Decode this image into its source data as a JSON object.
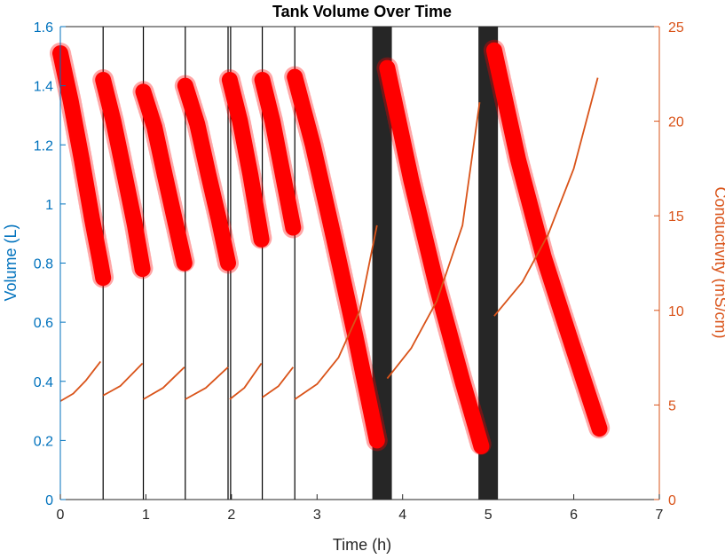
{
  "chart_data": {
    "type": "line",
    "title": "Tank Volume Over Time",
    "xlabel": "Time (h)",
    "ylabel_left": "Volume (L)",
    "ylabel_right": "Conductivity (mS/cm)",
    "xlim": [
      0,
      7
    ],
    "ylim_left": [
      0,
      1.6
    ],
    "ylim_right": [
      0,
      25
    ],
    "x_ticks": [
      0,
      1,
      2,
      3,
      4,
      5,
      6,
      7
    ],
    "y_left_ticks": [
      0,
      0.2,
      0.4,
      0.6,
      0.8,
      1,
      1.2,
      1.4,
      1.6
    ],
    "y_right_ticks": [
      0,
      5,
      10,
      15,
      20,
      25
    ],
    "grid": false,
    "colors": {
      "volume": "#ff0000",
      "conductivity": "#d95319",
      "left_axis": "#0072bd",
      "right_axis": "#d95319",
      "boundary": "#000000",
      "thick_boundary": "#262626"
    },
    "series": [
      {
        "axis": "left",
        "marker": "asterisk",
        "segments": [
          {
            "x": [
              0.0,
              0.12,
              0.25,
              0.37,
              0.47,
              0.5
            ],
            "y": [
              1.51,
              1.35,
              1.15,
              0.95,
              0.8,
              0.75
            ]
          },
          {
            "x": [
              0.5,
              0.62,
              0.75,
              0.87,
              0.96
            ],
            "y": [
              1.42,
              1.28,
              1.1,
              0.93,
              0.78
            ]
          },
          {
            "x": [
              0.97,
              1.1,
              1.22,
              1.35,
              1.45
            ],
            "y": [
              1.38,
              1.26,
              1.1,
              0.93,
              0.8
            ]
          },
          {
            "x": [
              1.46,
              1.6,
              1.73,
              1.85,
              1.96
            ],
            "y": [
              1.4,
              1.27,
              1.1,
              0.95,
              0.8
            ]
          },
          {
            "x": [
              1.98,
              2.1,
              2.22,
              2.35
            ],
            "y": [
              1.42,
              1.28,
              1.1,
              0.88
            ]
          },
          {
            "x": [
              2.36,
              2.48,
              2.6,
              2.72
            ],
            "y": [
              1.42,
              1.28,
              1.1,
              0.92
            ]
          },
          {
            "x": [
              2.74,
              2.95,
              3.2,
              3.45,
              3.7
            ],
            "y": [
              1.43,
              1.2,
              0.88,
              0.55,
              0.2
            ]
          },
          {
            "x": [
              3.82,
              4.1,
              4.4,
              4.7,
              4.92
            ],
            "y": [
              1.46,
              1.08,
              0.72,
              0.4,
              0.18
            ]
          },
          {
            "x": [
              5.07,
              5.35,
              5.65,
              5.95,
              6.3
            ],
            "y": [
              1.52,
              1.15,
              0.82,
              0.55,
              0.24
            ]
          }
        ]
      },
      {
        "axis": "right",
        "marker": "none",
        "segments": [
          {
            "x": [
              0.0,
              0.15,
              0.3,
              0.47
            ],
            "y": [
              5.2,
              5.6,
              6.3,
              7.3
            ]
          },
          {
            "x": [
              0.5,
              0.7,
              0.96
            ],
            "y": [
              5.5,
              6.0,
              7.2
            ]
          },
          {
            "x": [
              0.97,
              1.2,
              1.45
            ],
            "y": [
              5.3,
              5.9,
              7.0
            ]
          },
          {
            "x": [
              1.46,
              1.7,
              1.96
            ],
            "y": [
              5.3,
              5.9,
              7.0
            ]
          },
          {
            "x": [
              1.98,
              2.15,
              2.35
            ],
            "y": [
              5.3,
              5.9,
              7.2
            ]
          },
          {
            "x": [
              2.36,
              2.55,
              2.72
            ],
            "y": [
              5.4,
              6.0,
              7.0
            ]
          },
          {
            "x": [
              2.74,
              3.0,
              3.25,
              3.5,
              3.7
            ],
            "y": [
              5.3,
              6.1,
              7.5,
              10.0,
              14.5
            ]
          },
          {
            "x": [
              3.82,
              4.1,
              4.4,
              4.7,
              4.9
            ],
            "y": [
              6.4,
              8.0,
              10.5,
              14.5,
              21.0
            ]
          },
          {
            "x": [
              5.07,
              5.4,
              5.7,
              6.0,
              6.28
            ],
            "y": [
              9.7,
              11.5,
              14.0,
              17.5,
              22.3
            ]
          }
        ]
      }
    ],
    "boundaries": [
      {
        "x": 0.5,
        "kind": "thin"
      },
      {
        "x": 0.97,
        "kind": "thin"
      },
      {
        "x": 1.46,
        "kind": "thin"
      },
      {
        "x": 1.96,
        "kind": "thin"
      },
      {
        "x": 1.99,
        "kind": "thin"
      },
      {
        "x": 2.36,
        "kind": "thin"
      },
      {
        "x": 2.74,
        "kind": "thin"
      },
      {
        "x": 3.76,
        "kind": "thick"
      },
      {
        "x": 5.0,
        "kind": "thick"
      }
    ]
  }
}
